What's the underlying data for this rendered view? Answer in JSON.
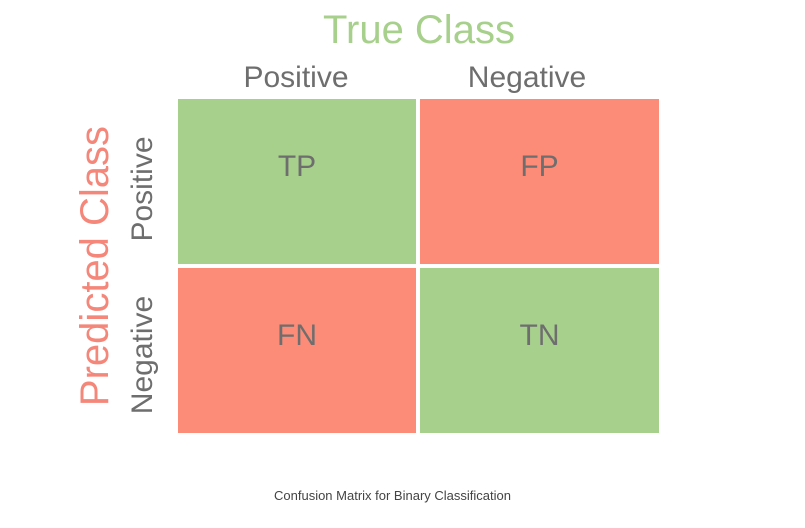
{
  "true_class": {
    "title": "True Class",
    "columns": [
      "Positive",
      "Negative"
    ],
    "color": "#a8d08d"
  },
  "predicted_class": {
    "title": "Predicted Class",
    "rows": [
      "Positive",
      "Negative"
    ],
    "color": "#f4877a"
  },
  "cells": [
    {
      "label": "TP",
      "color": "#a8d08d"
    },
    {
      "label": "FP",
      "color": "#fc8b77"
    },
    {
      "label": "FN",
      "color": "#fc8b77"
    },
    {
      "label": "TN",
      "color": "#a8d08d"
    }
  ],
  "label_color": "#6e6e6e",
  "caption": "Confusion Matrix for Binary Classification"
}
